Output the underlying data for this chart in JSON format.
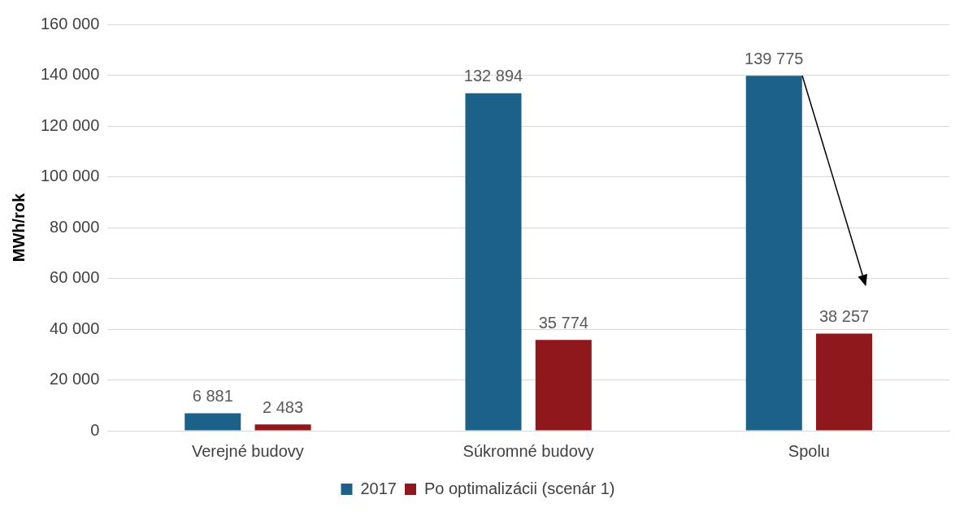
{
  "chart_data": {
    "type": "bar",
    "ylabel": "MWh/rok",
    "categories": [
      "Verejné budovy",
      "Súkromné budovy",
      "Spolu"
    ],
    "series": [
      {
        "name": "2017",
        "color": "#1b6189",
        "values": [
          6881,
          132894,
          139775
        ],
        "value_labels": [
          "6 881",
          "132 894",
          "139 775"
        ]
      },
      {
        "name": "Po optimalizácii (scenár 1)",
        "color": "#8e181b",
        "values": [
          2483,
          35774,
          38257
        ],
        "value_labels": [
          "2 483",
          "35 774",
          "38 257"
        ]
      }
    ],
    "ylim": [
      0,
      160000
    ],
    "yticks": [
      {
        "value": 0,
        "label": "0"
      },
      {
        "value": 20000,
        "label": "20 000"
      },
      {
        "value": 40000,
        "label": "40 000"
      },
      {
        "value": 60000,
        "label": "60 000"
      },
      {
        "value": 80000,
        "label": "80 000"
      },
      {
        "value": 100000,
        "label": "100 000"
      },
      {
        "value": 120000,
        "label": "120 000"
      },
      {
        "value": 140000,
        "label": "140 000"
      },
      {
        "value": 160000,
        "label": "160 000"
      }
    ],
    "grid": "y",
    "legend": "bottom"
  }
}
